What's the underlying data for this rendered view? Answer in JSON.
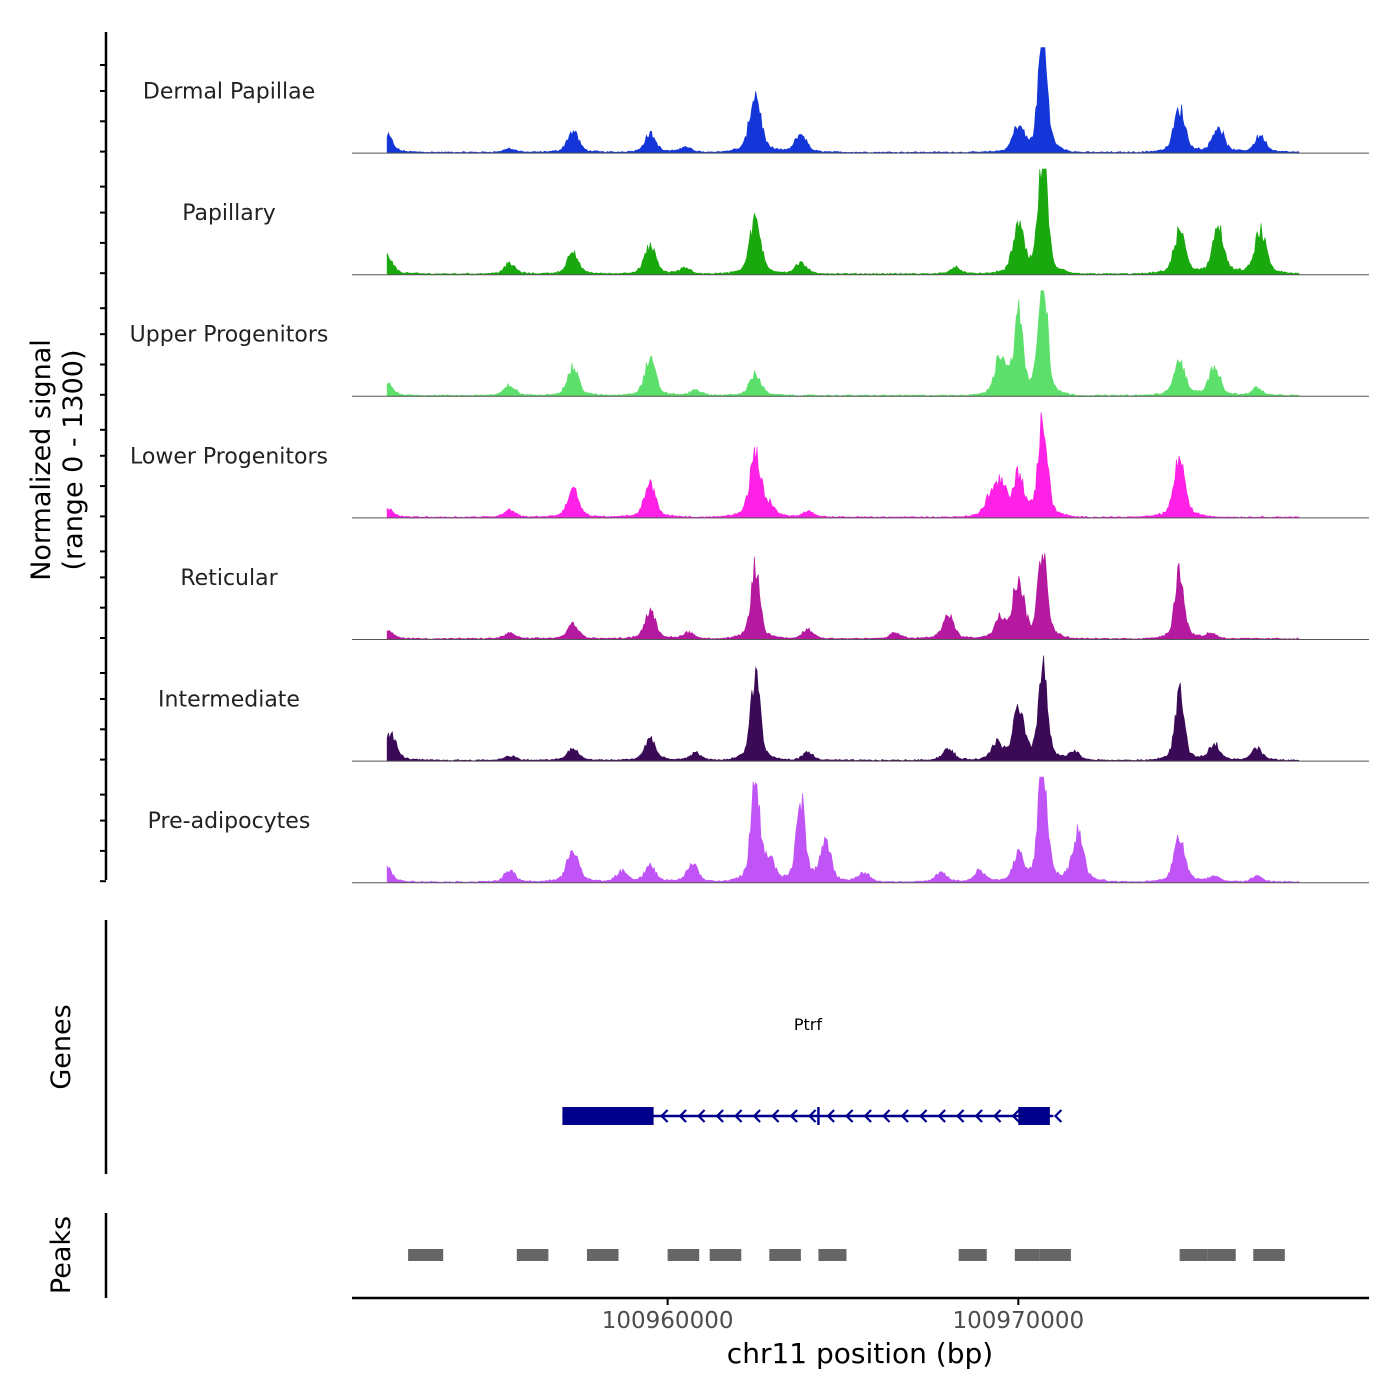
{
  "chart_data": {
    "type": "area",
    "title": "",
    "ylabel_line1": "Normalized signal",
    "ylabel_line2": "(range 0 - 1300)",
    "ylim": [
      0,
      1300
    ],
    "xlabel": "chr11 position (bp)",
    "xlim": [
      100951000,
      100980000
    ],
    "xticks": [
      {
        "value": 100960000,
        "label": "100960000"
      },
      {
        "value": 100970000,
        "label": "100970000"
      }
    ],
    "peak_centers": [
      100952500,
      100955500,
      100957500,
      100959800,
      100961000,
      100962600,
      100964000,
      100968000,
      100969600,
      100970700,
      100974600,
      100975500,
      100976800
    ],
    "tracks": [
      {
        "name": "Dermal Papillae",
        "color": "#1436d9",
        "peaks": [
          [
            100952000,
            180
          ],
          [
            100955500,
            40
          ],
          [
            100957300,
            230
          ],
          [
            100959500,
            200
          ],
          [
            100960500,
            60
          ],
          [
            100962500,
            640
          ],
          [
            100963800,
            200
          ],
          [
            100970000,
            280
          ],
          [
            100970700,
            1300
          ],
          [
            100974600,
            470
          ],
          [
            100975700,
            280
          ],
          [
            100976900,
            180
          ]
        ]
      },
      {
        "name": "Papillary",
        "color": "#1aa80f",
        "peaks": [
          [
            100952000,
            200
          ],
          [
            100955500,
            110
          ],
          [
            100957300,
            230
          ],
          [
            100959500,
            300
          ],
          [
            100960500,
            60
          ],
          [
            100962500,
            580
          ],
          [
            100963800,
            120
          ],
          [
            100968200,
            70
          ],
          [
            100970000,
            500
          ],
          [
            100970700,
            1300
          ],
          [
            100974600,
            460
          ],
          [
            100975700,
            510
          ],
          [
            100976900,
            480
          ]
        ]
      },
      {
        "name": "Upper Progenitors",
        "color": "#5de06b",
        "peaks": [
          [
            100952000,
            130
          ],
          [
            100955500,
            110
          ],
          [
            100957300,
            300
          ],
          [
            100959500,
            380
          ],
          [
            100960800,
            60
          ],
          [
            100962500,
            230
          ],
          [
            100969500,
            440
          ],
          [
            100970000,
            870
          ],
          [
            100970700,
            1300
          ],
          [
            100974600,
            380
          ],
          [
            100975600,
            310
          ],
          [
            100976800,
            80
          ]
        ]
      },
      {
        "name": "Lower Progenitors",
        "color": "#ff21e6",
        "peaks": [
          [
            100952000,
            100
          ],
          [
            100955500,
            80
          ],
          [
            100957300,
            300
          ],
          [
            100959500,
            370
          ],
          [
            100962500,
            660
          ],
          [
            100962900,
            110
          ],
          [
            100964000,
            60
          ],
          [
            100969200,
            190
          ],
          [
            100969500,
            320
          ],
          [
            100970000,
            440
          ],
          [
            100970700,
            1100
          ],
          [
            100974600,
            640
          ]
        ]
      },
      {
        "name": "Reticular",
        "color": "#b5199f",
        "peaks": [
          [
            100951500,
            60
          ],
          [
            100952000,
            90
          ],
          [
            100955500,
            60
          ],
          [
            100957300,
            160
          ],
          [
            100959500,
            290
          ],
          [
            100960600,
            70
          ],
          [
            100962500,
            780
          ],
          [
            100964000,
            100
          ],
          [
            100966500,
            60
          ],
          [
            100968000,
            260
          ],
          [
            100969500,
            220
          ],
          [
            100970000,
            630
          ],
          [
            100970700,
            1000
          ],
          [
            100974600,
            760
          ],
          [
            100975500,
            60
          ]
        ]
      },
      {
        "name": "Intermediate",
        "color": "#3a0a57",
        "peaks": [
          [
            100952100,
            300
          ],
          [
            100955500,
            50
          ],
          [
            100957300,
            130
          ],
          [
            100959500,
            230
          ],
          [
            100960800,
            80
          ],
          [
            100962500,
            960
          ],
          [
            100964000,
            80
          ],
          [
            100968000,
            130
          ],
          [
            100969400,
            180
          ],
          [
            100970000,
            530
          ],
          [
            100970700,
            1000
          ],
          [
            100971600,
            90
          ],
          [
            100974600,
            720
          ],
          [
            100975600,
            180
          ],
          [
            100976800,
            130
          ]
        ]
      },
      {
        "name": "Pre-adipocytes",
        "color": "#c054f7",
        "peaks": [
          [
            100952000,
            150
          ],
          [
            100955500,
            120
          ],
          [
            100957300,
            380
          ],
          [
            100958700,
            110
          ],
          [
            100959500,
            170
          ],
          [
            100960700,
            200
          ],
          [
            100962500,
            1050
          ],
          [
            100962900,
            220
          ],
          [
            100963800,
            860
          ],
          [
            100964500,
            420
          ],
          [
            100965600,
            100
          ],
          [
            100967800,
            100
          ],
          [
            100968900,
            120
          ],
          [
            100970000,
            290
          ],
          [
            100970700,
            1300
          ],
          [
            100971700,
            550
          ],
          [
            100974600,
            480
          ],
          [
            100975600,
            60
          ],
          [
            100976800,
            60
          ]
        ]
      }
    ],
    "genes_label": "Genes",
    "gene": {
      "name": "Ptrf",
      "strand": "-",
      "start": 100957000,
      "end": 100971000,
      "exons": [
        [
          100957000,
          100959600
        ],
        [
          100970000,
          100970900
        ]
      ],
      "color": "#00008b"
    },
    "peaks_label": "Peaks",
    "peak_regions": [
      [
        100952600,
        100953600
      ],
      [
        100955700,
        100956600
      ],
      [
        100957700,
        100958600
      ],
      [
        100960000,
        100960900
      ],
      [
        100961200,
        100962100
      ],
      [
        100962900,
        100963800
      ],
      [
        100964300,
        100965100
      ],
      [
        100968300,
        100969100
      ],
      [
        100969900,
        100970600
      ],
      [
        100970600,
        100971500
      ],
      [
        100974600,
        100975400
      ],
      [
        100975400,
        100976200
      ],
      [
        100976700,
        100977600
      ]
    ],
    "peak_color": "#666666"
  }
}
